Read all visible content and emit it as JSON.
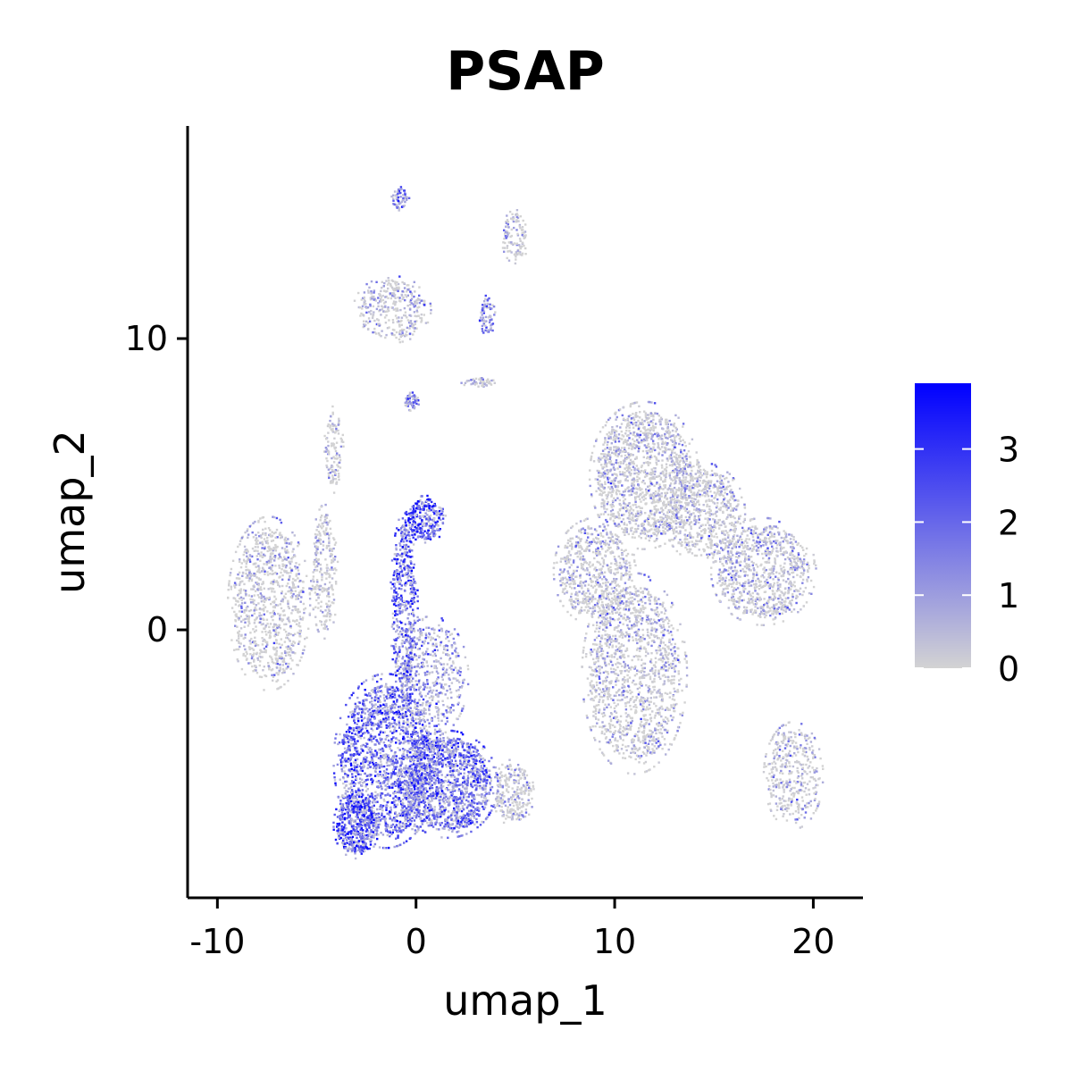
{
  "chart_data": {
    "type": "scatter",
    "title": "PSAP",
    "xlabel": "umap_1",
    "ylabel": "umap_2",
    "xlim": [
      -11.5,
      22.5
    ],
    "ylim": [
      -9.2,
      17.3
    ],
    "x_ticks": [
      -10,
      0,
      10,
      20
    ],
    "x_tick_labels": [
      "-10",
      "0",
      "10",
      "20"
    ],
    "y_ticks": [
      0,
      10
    ],
    "y_tick_labels": [
      "0",
      "10"
    ],
    "grid": false,
    "legend": {
      "type": "colorbar",
      "position": "right",
      "min": 0,
      "max": 3.9,
      "ticks": [
        0,
        1,
        2,
        3
      ],
      "tick_labels": [
        "0",
        "1",
        "2",
        "3"
      ],
      "color_low": "#d3d3d3",
      "color_high": "#0000ff"
    },
    "clusters": [
      {
        "x": -1.5,
        "y": -4.5,
        "rx": 2.3,
        "ry": 2.6,
        "density": 1800,
        "expression": 2.3
      },
      {
        "x": 1.6,
        "y": -5.3,
        "rx": 2.2,
        "ry": 1.6,
        "density": 1400,
        "expression": 2.1
      },
      {
        "x": -3.0,
        "y": -6.7,
        "rx": 1.0,
        "ry": 1.0,
        "density": 450,
        "expression": 2.7
      },
      {
        "x": 0.8,
        "y": -1.6,
        "rx": 1.6,
        "ry": 1.8,
        "density": 500,
        "expression": 1.1
      },
      {
        "x": -0.6,
        "y": 0.8,
        "rx": 0.6,
        "ry": 2.8,
        "density": 500,
        "expression": 2.3
      },
      {
        "x": 0.5,
        "y": 3.8,
        "rx": 0.9,
        "ry": 0.7,
        "density": 280,
        "expression": 3.0
      },
      {
        "x": 4.9,
        "y": -5.6,
        "rx": 0.9,
        "ry": 1.0,
        "density": 260,
        "expression": 0.2
      },
      {
        "x": -7.4,
        "y": 0.9,
        "rx": 1.8,
        "ry": 2.6,
        "density": 950,
        "expression": 0.2
      },
      {
        "x": -4.6,
        "y": 2.0,
        "rx": 0.6,
        "ry": 2.0,
        "density": 260,
        "expression": 0.2
      },
      {
        "x": -4.1,
        "y": 6.2,
        "rx": 0.45,
        "ry": 1.3,
        "density": 120,
        "expression": 0.2
      },
      {
        "x": 11.0,
        "y": -1.5,
        "rx": 2.3,
        "ry": 3.0,
        "density": 1400,
        "expression": 0.3
      },
      {
        "x": 9.0,
        "y": 2.0,
        "rx": 1.8,
        "ry": 1.6,
        "density": 650,
        "expression": 0.3
      },
      {
        "x": 11.5,
        "y": 5.3,
        "rx": 2.4,
        "ry": 2.2,
        "density": 1400,
        "expression": 0.3
      },
      {
        "x": 14.5,
        "y": 4.0,
        "rx": 1.8,
        "ry": 1.5,
        "density": 700,
        "expression": 0.3
      },
      {
        "x": 17.5,
        "y": 2.0,
        "rx": 2.3,
        "ry": 1.6,
        "density": 900,
        "expression": 0.4
      },
      {
        "x": 19.0,
        "y": -5.0,
        "rx": 1.3,
        "ry": 1.6,
        "density": 400,
        "expression": 0.3
      },
      {
        "x": -1.2,
        "y": 11.0,
        "rx": 1.7,
        "ry": 1.0,
        "density": 350,
        "expression": 0.5
      },
      {
        "x": -0.8,
        "y": 14.8,
        "rx": 0.4,
        "ry": 0.35,
        "density": 60,
        "expression": 1.6
      },
      {
        "x": 5.0,
        "y": 13.5,
        "rx": 0.6,
        "ry": 0.8,
        "density": 120,
        "expression": 0.2
      },
      {
        "x": 3.6,
        "y": 10.8,
        "rx": 0.35,
        "ry": 0.6,
        "density": 70,
        "expression": 1.8
      },
      {
        "x": -0.2,
        "y": 7.8,
        "rx": 0.35,
        "ry": 0.3,
        "density": 50,
        "expression": 2.2
      },
      {
        "x": 3.2,
        "y": 8.5,
        "rx": 0.8,
        "ry": 0.15,
        "density": 50,
        "expression": 0.3
      }
    ]
  }
}
